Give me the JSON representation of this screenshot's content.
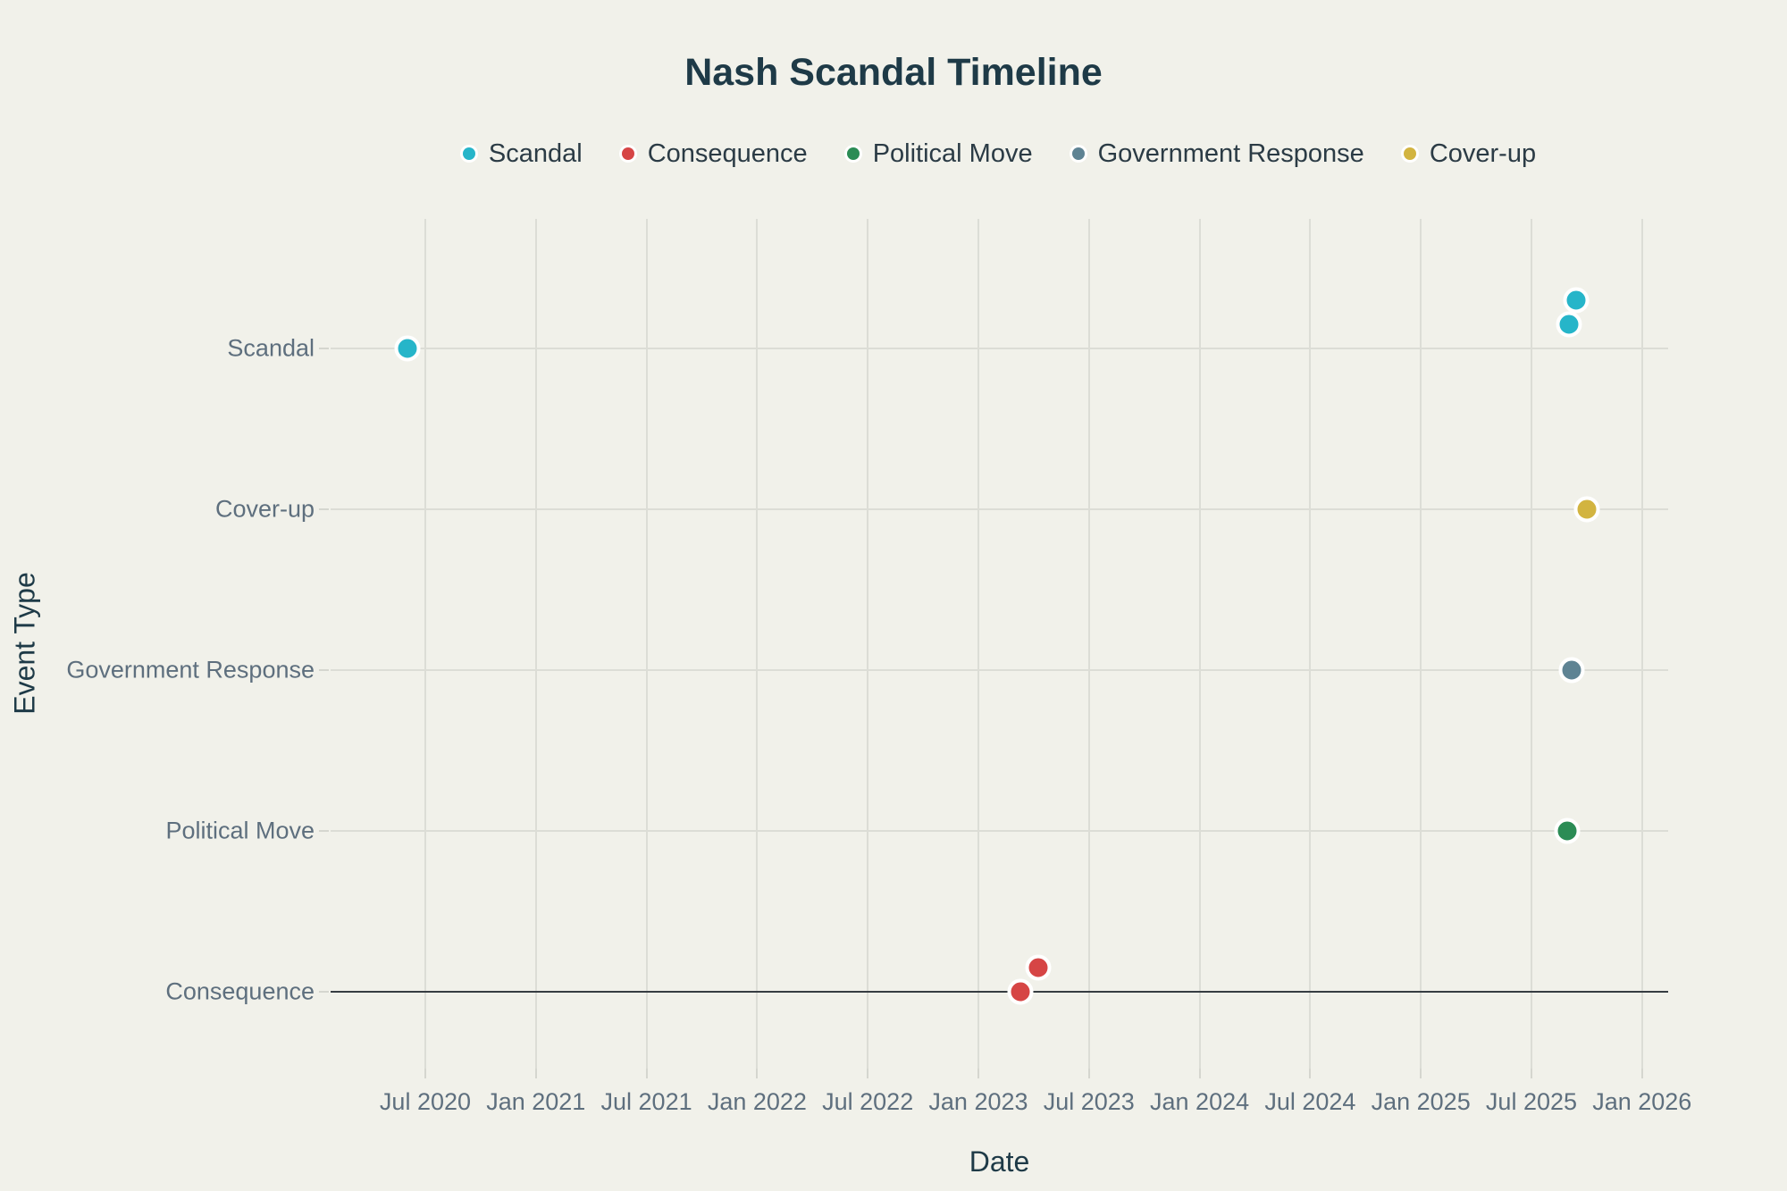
{
  "chart_data": {
    "type": "scatter",
    "title": "Nash Scandal Timeline",
    "xlabel": "Date",
    "ylabel": "Event Type",
    "grid": true,
    "legend_position": "top-center",
    "background_color": "#f1f1ea",
    "grid_color": "#dcddd6",
    "zero_line_color": "#363d42",
    "tick_label_color": "#5e6f7e",
    "title_color": "#1e3a47",
    "x_axis": {
      "min_year": 2020.072,
      "max_year": 2026.118,
      "ticks": [
        {
          "year": 2020.5,
          "label": "Jul 2020"
        },
        {
          "year": 2021.0,
          "label": "Jan 2021"
        },
        {
          "year": 2021.5,
          "label": "Jul 2021"
        },
        {
          "year": 2022.0,
          "label": "Jan 2022"
        },
        {
          "year": 2022.5,
          "label": "Jul 2022"
        },
        {
          "year": 2023.0,
          "label": "Jan 2023"
        },
        {
          "year": 2023.5,
          "label": "Jul 2023"
        },
        {
          "year": 2024.0,
          "label": "Jan 2024"
        },
        {
          "year": 2024.5,
          "label": "Jul 2024"
        },
        {
          "year": 2025.0,
          "label": "Jan 2025"
        },
        {
          "year": 2025.5,
          "label": "Jul 2025"
        },
        {
          "year": 2026.0,
          "label": "Jan 2026"
        }
      ]
    },
    "y_categories": [
      "Scandal",
      "Cover-up",
      "Government Response",
      "Political Move",
      "Consequence"
    ],
    "zero_line_category": "Consequence",
    "series": [
      {
        "name": "Scandal",
        "color": "#26b5c9",
        "points": [
          {
            "date": "Jun 2020",
            "year": 2020.42,
            "category": "Scandal",
            "jitter_level": 0
          },
          {
            "date": "Sep 2025",
            "year": 2025.67,
            "category": "Scandal",
            "jitter_level": 1
          },
          {
            "date": "Sep 2025",
            "year": 2025.7,
            "category": "Scandal",
            "jitter_level": 2
          }
        ]
      },
      {
        "name": "Consequence",
        "color": "#d64545",
        "points": [
          {
            "date": "Mar 2023",
            "year": 2023.19,
            "category": "Consequence",
            "jitter_level": 0
          },
          {
            "date": "Apr 2023",
            "year": 2023.27,
            "category": "Consequence",
            "jitter_level": 1
          }
        ]
      },
      {
        "name": "Political Move",
        "color": "#2b8c55",
        "points": [
          {
            "date": "Sep 2025",
            "year": 2025.66,
            "category": "Political Move",
            "jitter_level": 0
          }
        ]
      },
      {
        "name": "Government Response",
        "color": "#5e8393",
        "points": [
          {
            "date": "Sep 2025",
            "year": 2025.68,
            "category": "Government Response",
            "jitter_level": 0
          }
        ]
      },
      {
        "name": "Cover-up",
        "color": "#d2b440",
        "points": [
          {
            "date": "Oct 2025",
            "year": 2025.75,
            "category": "Cover-up",
            "jitter_level": 0
          }
        ]
      }
    ]
  }
}
